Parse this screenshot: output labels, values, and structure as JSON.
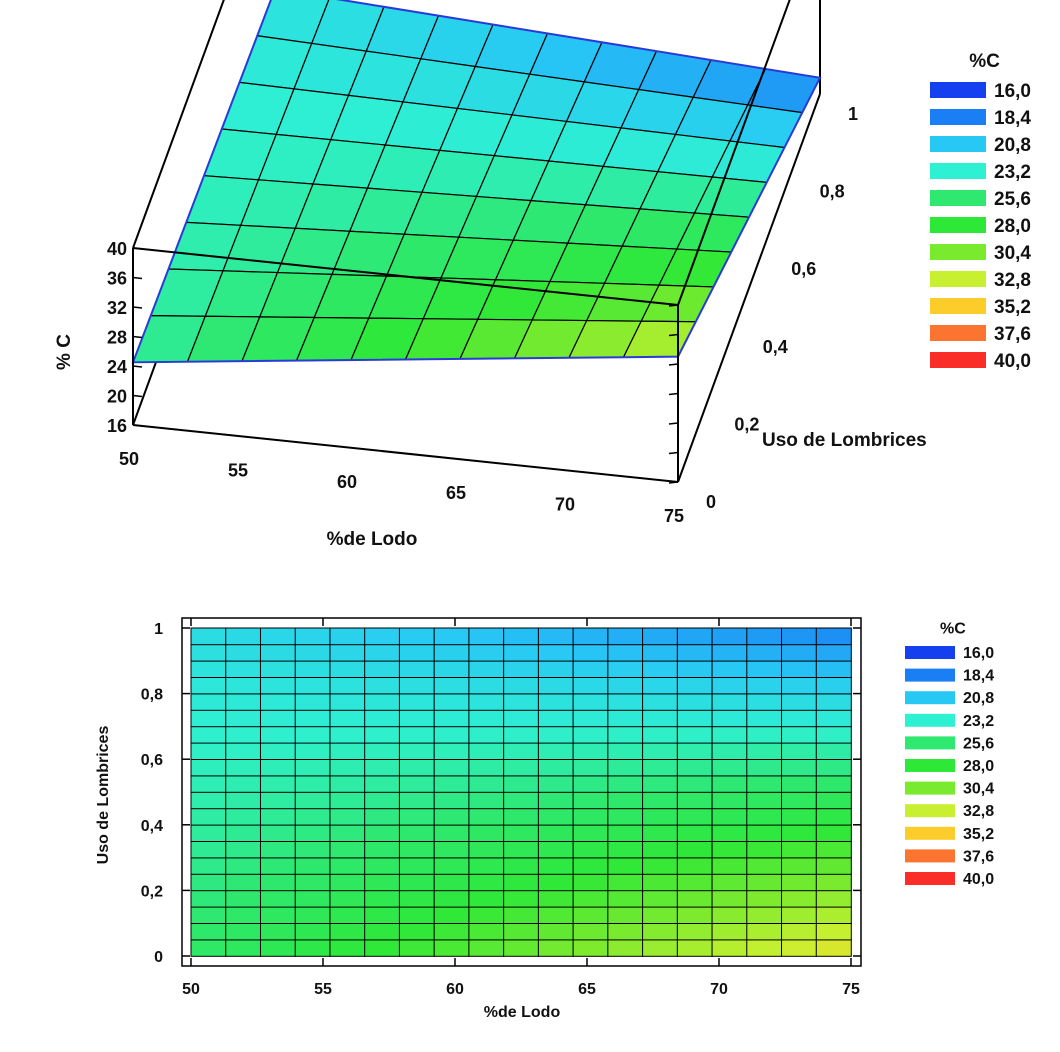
{
  "chart_data": [
    {
      "type": "surface3d",
      "title": "",
      "xlabel": "%de Lodo",
      "ylabel": "Uso de Lombrices",
      "zlabel": "% C",
      "xlim": [
        50,
        75
      ],
      "ylim": [
        0,
        1
      ],
      "zlim": [
        16,
        40
      ],
      "x_ticks": [
        "50",
        "55",
        "60",
        "65",
        "70",
        "75"
      ],
      "y_ticks": [
        "0",
        "0,2",
        "0,4",
        "0,6",
        "0,8",
        "1"
      ],
      "z_ticks": [
        "16",
        "20",
        "24",
        "28",
        "32",
        "36",
        "40"
      ],
      "surface_corners": {
        "x50_y0": 24.5,
        "x75_y0": 33.0,
        "x50_y1": 22.5,
        "x75_y1": 18.2
      },
      "legend": {
        "title": "%C",
        "levels": [
          "16,0",
          "18,4",
          "20,8",
          "23,2",
          "25,6",
          "28,0",
          "30,4",
          "32,8",
          "35,2",
          "37,6",
          "40,0"
        ],
        "colors": [
          "#1540f0",
          "#1a7ff5",
          "#28c8f5",
          "#2ef0d2",
          "#2ee870",
          "#2ee838",
          "#7aea2e",
          "#c9f030",
          "#fbcc2a",
          "#fb7530",
          "#fb2d28"
        ],
        "placement": "right"
      }
    },
    {
      "type": "heatmap",
      "title": "",
      "xlabel": "%de Lodo",
      "ylabel": "Uso de Lombrices",
      "xlim": [
        50,
        75
      ],
      "ylim": [
        0,
        1
      ],
      "x_ticks": [
        "50",
        "55",
        "60",
        "65",
        "70",
        "75"
      ],
      "y_ticks": [
        "0",
        "0,2",
        "0,4",
        "0,6",
        "0,8",
        "1"
      ],
      "surface_corners": {
        "x50_y0": 25.9,
        "x75_y0": 34.0,
        "x50_y1": 22.0,
        "x75_y1": 18.5
      },
      "legend": {
        "title": "%C",
        "levels": [
          "16,0",
          "18,4",
          "20,8",
          "23,2",
          "25,6",
          "28,0",
          "30,4",
          "32,8",
          "35,2",
          "37,6",
          "40,0"
        ],
        "colors": [
          "#1540f0",
          "#1a7ff5",
          "#28c8f5",
          "#2ef0d2",
          "#2ee870",
          "#2ee838",
          "#7aea2e",
          "#c9f030",
          "#fbcc2a",
          "#fb7530",
          "#fb2d28"
        ],
        "placement": "right"
      }
    }
  ]
}
